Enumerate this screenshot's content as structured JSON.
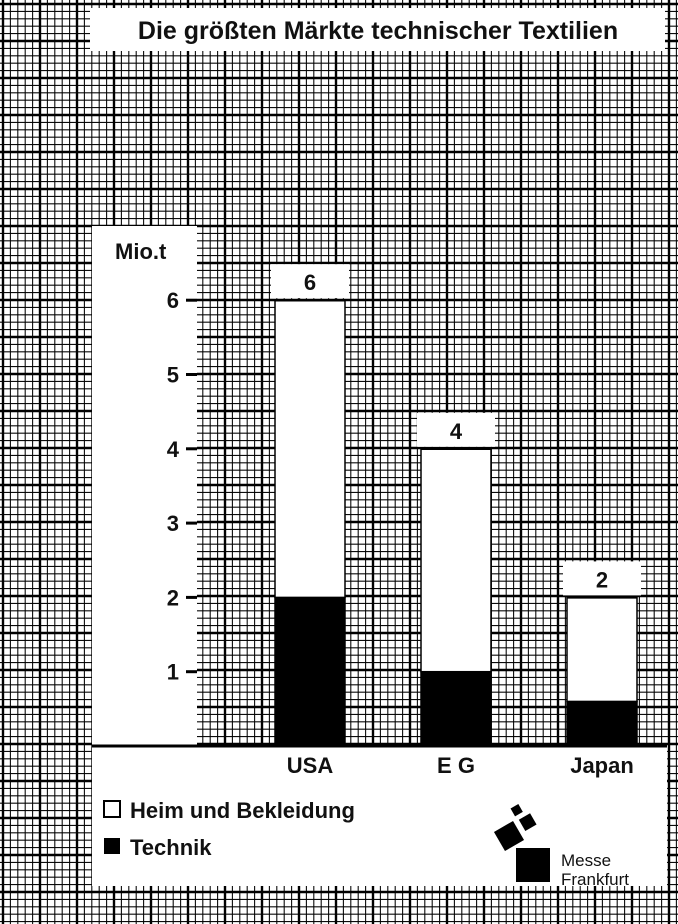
{
  "chart_data": {
    "type": "bar",
    "stacked": true,
    "title": "Die größten Märkte technischer Textilien",
    "ylabel": "Mio.t",
    "xlabel": "",
    "categories": [
      "USA",
      "E G",
      "Japan"
    ],
    "series": [
      {
        "name": "Technik",
        "values": [
          2.0,
          1.0,
          0.6
        ]
      },
      {
        "name": "Heim und Bekleidung",
        "values": [
          4.0,
          3.0,
          1.4
        ]
      }
    ],
    "totals": [
      "6",
      "4",
      "2"
    ],
    "ylim": [
      0,
      6
    ],
    "yticks": [
      "1",
      "2",
      "3",
      "4",
      "5",
      "6"
    ],
    "grid": true,
    "legend_position": "bottom-left",
    "colors": {
      "Technik": "#000000",
      "Heim und Bekleidung": "#ffffff",
      "grid": "#000000"
    }
  },
  "logo": {
    "line1": "Messe",
    "line2": "Frankfurt"
  }
}
